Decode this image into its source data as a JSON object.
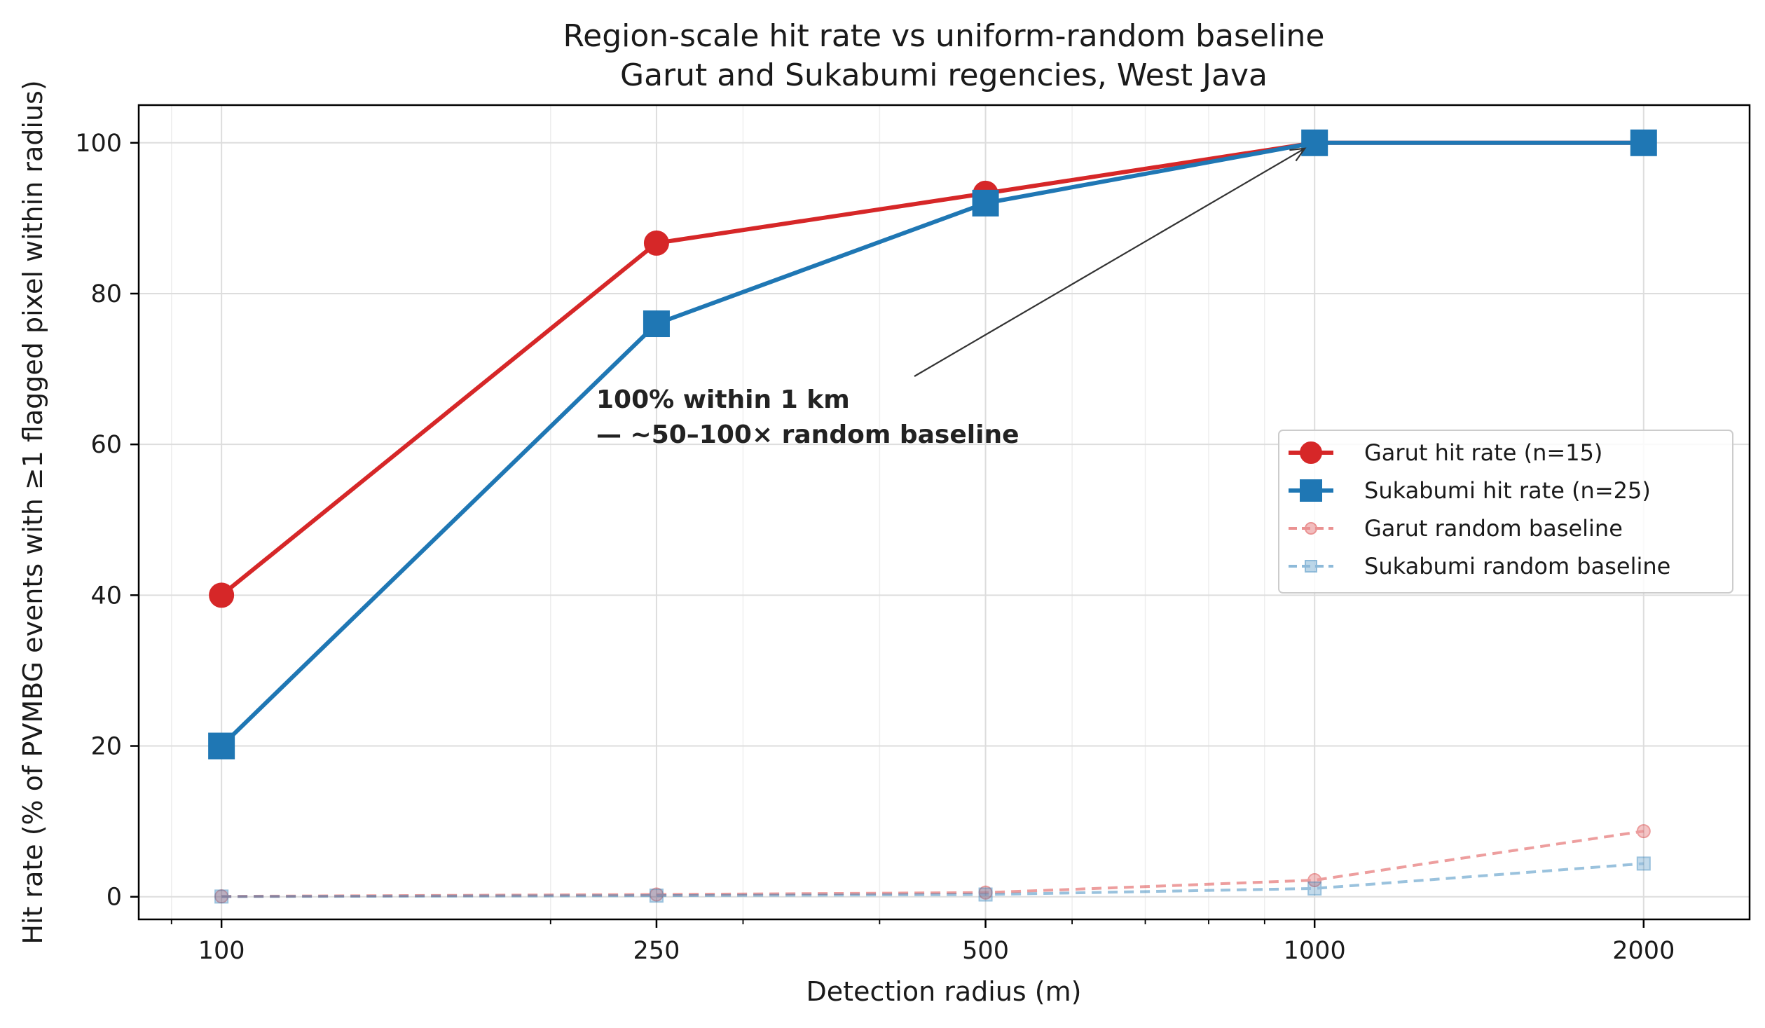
{
  "chart_data": {
    "type": "line",
    "title": "Region-scale hit rate vs uniform-random baseline",
    "subtitle": "Garut and Sukabumi regencies, West Java",
    "xlabel": "Detection radius (m)",
    "ylabel": "Hit rate (% of PVMBG events with ≥1 flagged pixel within radius)",
    "x_scale": "log",
    "x": [
      100,
      250,
      500,
      1000,
      2000
    ],
    "x_tick_labels": [
      "100",
      "250",
      "500",
      "1000",
      "2000"
    ],
    "xlim": [
      84,
      2500
    ],
    "y_ticks": [
      0,
      20,
      40,
      60,
      80,
      100
    ],
    "y_tick_labels": [
      "0",
      "20",
      "40",
      "60",
      "80",
      "100"
    ],
    "ylim": [
      -3,
      105
    ],
    "grid": true,
    "legend_position": "center-right",
    "series": [
      {
        "name": "Garut hit rate (n=15)",
        "values": [
          40.0,
          86.7,
          93.3,
          100.0,
          100.0
        ],
        "color": "#d62728",
        "style": "solid",
        "marker": "circle"
      },
      {
        "name": "Sukabumi hit rate (n=25)",
        "values": [
          20.0,
          76.0,
          92.0,
          100.0,
          100.0
        ],
        "color": "#1f77b4",
        "style": "solid",
        "marker": "square"
      },
      {
        "name": "Garut random baseline",
        "values": [
          0.05,
          0.3,
          0.55,
          2.2,
          8.7
        ],
        "color": "#d62728",
        "style": "dashed",
        "marker": "circle"
      },
      {
        "name": "Sukabumi random baseline",
        "values": [
          0.03,
          0.15,
          0.3,
          1.1,
          4.4
        ],
        "color": "#1f77b4",
        "style": "dashed",
        "marker": "square"
      }
    ],
    "annotation": {
      "lines": [
        "100% within 1 km",
        "— ~50–100× random baseline"
      ],
      "target": {
        "x": 1000,
        "y": 100
      },
      "anchor": {
        "x": 440,
        "y": 69
      }
    }
  }
}
